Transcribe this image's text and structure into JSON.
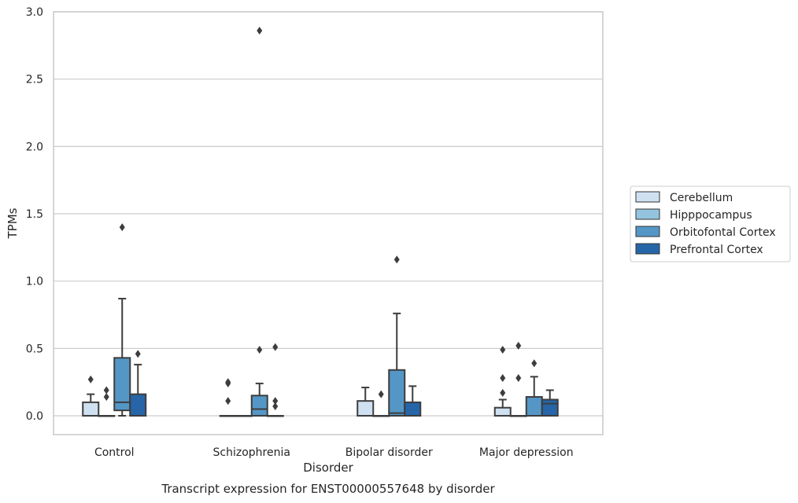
{
  "chart_data": {
    "type": "box",
    "title": "Transcript expression for ENST00000557648 by disorder",
    "xlabel": "Disorder",
    "ylabel": "TPMs",
    "ylim": [
      -0.14,
      3.0
    ],
    "yticks": [
      0.0,
      0.5,
      1.0,
      1.5,
      2.0,
      2.5,
      3.0
    ],
    "ytick_labels": [
      "0.0",
      "0.5",
      "1.0",
      "1.5",
      "2.0",
      "2.5",
      "3.0"
    ],
    "grid": "horizontal",
    "legend_position": "right",
    "categories": [
      "Control",
      "Schizophrenia",
      "Bipolar disorder",
      "Major depression"
    ],
    "series": [
      {
        "name": "Cerebellum",
        "color": "#cfe0f1",
        "boxes": [
          {
            "q1": 0.0,
            "median": 0.0,
            "q3": 0.1,
            "whisker_low": 0.0,
            "whisker_high": 0.16,
            "outliers": [
              0.27
            ]
          },
          {
            "q1": 0.0,
            "median": 0.0,
            "q3": 0.0,
            "whisker_low": 0.0,
            "whisker_high": 0.0,
            "outliers": [
              0.11,
              0.24,
              0.25
            ]
          },
          {
            "q1": 0.0,
            "median": 0.0,
            "q3": 0.11,
            "whisker_low": 0.0,
            "whisker_high": 0.21,
            "outliers": []
          },
          {
            "q1": 0.0,
            "median": 0.0,
            "q3": 0.06,
            "whisker_low": 0.0,
            "whisker_high": 0.12,
            "outliers": [
              0.17,
              0.28,
              0.49
            ]
          }
        ]
      },
      {
        "name": "Hipppocampus",
        "color": "#93c3df",
        "boxes": [
          {
            "q1": 0.0,
            "median": 0.0,
            "q3": 0.0,
            "whisker_low": 0.0,
            "whisker_high": 0.0,
            "outliers": [
              0.14,
              0.19
            ]
          },
          {
            "q1": 0.0,
            "median": 0.0,
            "q3": 0.0,
            "whisker_low": 0.0,
            "whisker_high": 0.0,
            "outliers": []
          },
          {
            "q1": 0.0,
            "median": 0.0,
            "q3": 0.0,
            "whisker_low": 0.0,
            "whisker_high": 0.0,
            "outliers": [
              0.16
            ]
          },
          {
            "q1": 0.0,
            "median": 0.0,
            "q3": 0.0,
            "whisker_low": 0.0,
            "whisker_high": 0.0,
            "outliers": [
              0.28,
              0.52
            ]
          }
        ]
      },
      {
        "name": "Orbitofontal Cortex",
        "color": "#5497c7",
        "boxes": [
          {
            "q1": 0.04,
            "median": 0.1,
            "q3": 0.43,
            "whisker_low": 0.0,
            "whisker_high": 0.87,
            "outliers": [
              1.4
            ]
          },
          {
            "q1": 0.0,
            "median": 0.05,
            "q3": 0.15,
            "whisker_low": 0.0,
            "whisker_high": 0.24,
            "outliers": [
              0.49,
              2.86
            ]
          },
          {
            "q1": 0.0,
            "median": 0.02,
            "q3": 0.34,
            "whisker_low": 0.0,
            "whisker_high": 0.76,
            "outliers": [
              1.16
            ]
          },
          {
            "q1": 0.0,
            "median": 0.0,
            "q3": 0.14,
            "whisker_low": 0.0,
            "whisker_high": 0.29,
            "outliers": [
              0.39
            ]
          }
        ]
      },
      {
        "name": "Prefrontal Cortex",
        "color": "#2665a8",
        "boxes": [
          {
            "q1": 0.0,
            "median": 0.0,
            "q3": 0.16,
            "whisker_low": 0.0,
            "whisker_high": 0.38,
            "outliers": [
              0.46
            ]
          },
          {
            "q1": 0.0,
            "median": 0.0,
            "q3": 0.0,
            "whisker_low": 0.0,
            "whisker_high": 0.0,
            "outliers": [
              0.07,
              0.11,
              0.51
            ]
          },
          {
            "q1": 0.0,
            "median": 0.0,
            "q3": 0.1,
            "whisker_low": 0.0,
            "whisker_high": 0.22,
            "outliers": []
          },
          {
            "q1": 0.0,
            "median": 0.09,
            "q3": 0.12,
            "whisker_low": 0.0,
            "whisker_high": 0.19,
            "outliers": []
          }
        ]
      }
    ]
  }
}
